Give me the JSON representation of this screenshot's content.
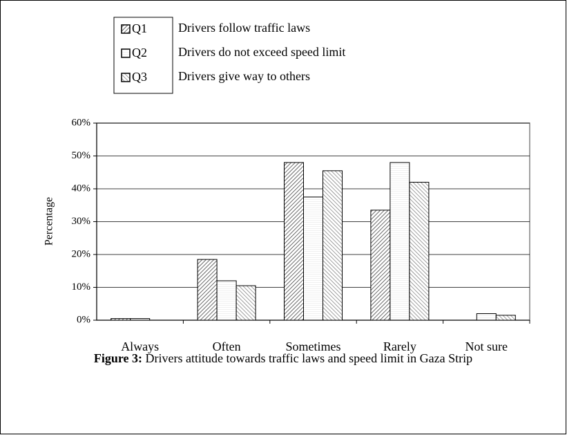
{
  "chart_data": {
    "type": "bar",
    "title_label": "Figure 3:",
    "title": "Drivers attitude towards traffic laws and speed limit in Gaza Strip",
    "ylabel": "Percentage",
    "categories": [
      "Always",
      "Often",
      "Sometimes",
      "Rarely",
      "Not sure"
    ],
    "series": [
      {
        "name": "Q1",
        "description": "Drivers follow traffic laws",
        "color": "#444444",
        "values": [
          0.5,
          18.5,
          48,
          33.5,
          0
        ]
      },
      {
        "name": "Q2",
        "description": "Drivers do not exceed speed limit",
        "color": "#cccccc",
        "values": [
          0.5,
          12,
          37.5,
          48,
          2
        ]
      },
      {
        "name": "Q3",
        "description": "Drivers give way to others",
        "color": "#777777",
        "values": [
          0,
          10.5,
          45.5,
          42,
          1.5
        ]
      }
    ],
    "ylim": [
      0,
      60
    ],
    "yticks": [
      {
        "value": 0,
        "label": "0%"
      },
      {
        "value": 10,
        "label": "10%"
      },
      {
        "value": 20,
        "label": "20%"
      },
      {
        "value": 30,
        "label": "30%"
      },
      {
        "value": 40,
        "label": "40%"
      },
      {
        "value": 50,
        "label": "50%"
      },
      {
        "value": 60,
        "label": "60%"
      }
    ],
    "grid": true
  }
}
